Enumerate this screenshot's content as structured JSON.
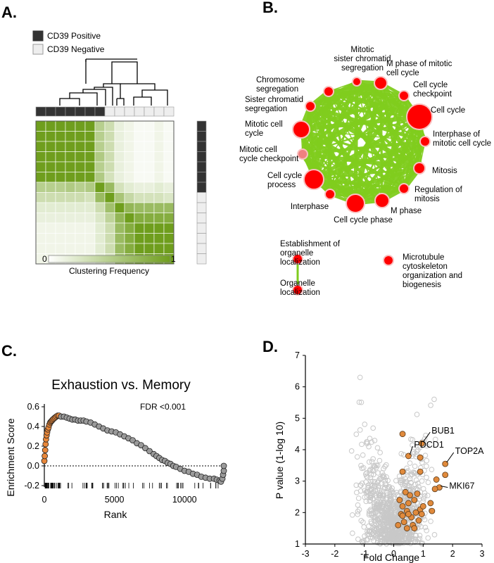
{
  "panel_labels": [
    "A.",
    "B.",
    "C.",
    "D."
  ],
  "colors": {
    "green": "#6f9e1d",
    "net_edge": "#7fcc1e",
    "net_node": "#ff0000",
    "net_node_light": "#f08080",
    "gsea_orange": "#e8873a",
    "gsea_grey": "#9a9a9a",
    "volcano_grey": "#c8c8c8",
    "volcano_orange": "#e08a3c"
  },
  "panel_a": {
    "legend": [
      {
        "label": "CD39 Positive",
        "color": "#333333"
      },
      {
        "label": "CD39 Negative",
        "color": "#eeeeee"
      }
    ],
    "colorbar": {
      "min_label": "0",
      "max_label": "1",
      "title": "Clustering Frequency"
    },
    "n_samples": 14,
    "n_positive": 7,
    "matrix": [
      [
        1,
        1,
        1,
        1,
        1,
        1,
        0.5,
        0.35,
        0.15,
        0.1,
        0.05,
        0.05,
        0.1,
        0.05
      ],
      [
        1,
        1,
        1,
        1,
        1,
        1,
        0.5,
        0.35,
        0.15,
        0.1,
        0.05,
        0.05,
        0.1,
        0.05
      ],
      [
        1,
        1,
        1,
        1,
        1,
        1,
        0.5,
        0.35,
        0.15,
        0.1,
        0.05,
        0.05,
        0.1,
        0.05
      ],
      [
        1,
        1,
        1,
        1,
        1,
        1,
        0.55,
        0.35,
        0.15,
        0.1,
        0.05,
        0.05,
        0.1,
        0.05
      ],
      [
        1,
        1,
        1,
        1,
        1,
        1,
        0.5,
        0.35,
        0.15,
        0.1,
        0.05,
        0.05,
        0.1,
        0.05
      ],
      [
        1,
        1,
        1,
        1,
        1,
        1,
        0.55,
        0.3,
        0.15,
        0.1,
        0.05,
        0.05,
        0.1,
        0.05
      ],
      [
        0.5,
        0.5,
        0.5,
        0.55,
        0.5,
        0.55,
        1,
        0.7,
        0.3,
        0.2,
        0.15,
        0.15,
        0.2,
        0.15
      ],
      [
        0.35,
        0.35,
        0.35,
        0.35,
        0.35,
        0.3,
        0.7,
        1,
        0.6,
        0.4,
        0.3,
        0.3,
        0.3,
        0.25
      ],
      [
        0.2,
        0.2,
        0.2,
        0.2,
        0.2,
        0.2,
        0.35,
        0.65,
        1,
        0.75,
        0.7,
        0.7,
        0.7,
        0.7
      ],
      [
        0.15,
        0.15,
        0.15,
        0.15,
        0.15,
        0.15,
        0.25,
        0.45,
        0.75,
        1,
        0.85,
        0.85,
        0.85,
        0.85
      ],
      [
        0.1,
        0.1,
        0.1,
        0.1,
        0.1,
        0.1,
        0.2,
        0.35,
        0.7,
        0.85,
        1,
        1,
        1,
        1
      ],
      [
        0.1,
        0.1,
        0.1,
        0.1,
        0.1,
        0.1,
        0.2,
        0.35,
        0.7,
        0.85,
        1,
        1,
        1,
        1
      ],
      [
        0.1,
        0.1,
        0.1,
        0.1,
        0.1,
        0.1,
        0.2,
        0.35,
        0.7,
        0.85,
        1,
        1,
        1,
        1
      ],
      [
        0.1,
        0.1,
        0.1,
        0.1,
        0.1,
        0.1,
        0.2,
        0.3,
        0.7,
        0.85,
        1,
        1,
        1,
        1
      ]
    ]
  },
  "panel_b": {
    "nodes": [
      {
        "label": "Mitotic\nsister chromatid\nsegregation",
        "size": 1
      },
      {
        "label": "M phase of mitotic\ncell cycle",
        "size": 2
      },
      {
        "label": "Cell cycle\ncheckpoint",
        "size": 1
      },
      {
        "label": "Cell cycle",
        "size": 4
      },
      {
        "label": "Interphase of\nmitotic cell cycle",
        "size": 1
      },
      {
        "label": "Mitosis",
        "size": 2
      },
      {
        "label": "Regulation of\nmitosis",
        "size": 1
      },
      {
        "label": "M phase",
        "size": 2
      },
      {
        "label": "Cell cycle phase",
        "size": 3
      },
      {
        "label": "Interphase",
        "size": 1
      },
      {
        "label": "Cell cycle\nprocess",
        "size": 3
      },
      {
        "label": "Mitotic cell\ncycle checkpoint",
        "size": 1,
        "light": true
      },
      {
        "label": "Mitotic cell\ncycle",
        "size": 3
      },
      {
        "label": "Sister chromatid\nsegregation",
        "size": 1
      },
      {
        "label": "Chromosome\nsegregation",
        "size": 1
      }
    ],
    "pair_nodes": [
      {
        "label": "Establishment of\norganelle\nlocalization"
      },
      {
        "label": "Organelle\nlocalization"
      }
    ],
    "single_node": {
      "label": "Microtubule\ncytoskeleton\norganization and\nbiogenesis"
    }
  },
  "chart_data": [
    {
      "type": "line",
      "title": "Exhaustion vs. Memory",
      "annotation": "FDR <0.001",
      "xlabel": "Rank",
      "ylabel": "Enrichment Score",
      "xlim": [
        0,
        13000
      ],
      "ylim": [
        -0.2,
        0.6
      ],
      "xticks": [
        "0",
        "5000",
        "10000"
      ],
      "xtick_values": [
        0,
        5000,
        10000
      ],
      "yticks": [
        "-0.2",
        "0.0",
        "0.2",
        "0.4",
        "0.6"
      ],
      "ytick_values": [
        -0.2,
        0,
        0.2,
        0.4,
        0.6
      ],
      "reference_line": 0,
      "series": [
        {
          "points": [
            [
              0,
              0.05
            ],
            [
              30,
              0.1
            ],
            [
              60,
              0.16
            ],
            [
              90,
              0.22
            ],
            [
              120,
              0.27
            ],
            [
              160,
              0.31
            ],
            [
              200,
              0.34
            ],
            [
              250,
              0.37
            ],
            [
              300,
              0.39
            ],
            [
              360,
              0.42
            ],
            [
              420,
              0.44
            ],
            [
              480,
              0.45
            ],
            [
              540,
              0.46
            ],
            [
              600,
              0.47
            ],
            [
              680,
              0.48
            ],
            [
              760,
              0.49
            ],
            [
              850,
              0.5
            ],
            [
              950,
              0.51
            ],
            [
              1050,
              0.51
            ]
          ],
          "color": "orange"
        },
        {
          "points": [
            [
              1200,
              0.5
            ],
            [
              1400,
              0.5
            ],
            [
              1600,
              0.49
            ],
            [
              1800,
              0.48
            ],
            [
              2000,
              0.47
            ],
            [
              2200,
              0.47
            ],
            [
              2400,
              0.46
            ],
            [
              2600,
              0.46
            ],
            [
              2800,
              0.46
            ],
            [
              3000,
              0.45
            ],
            [
              3300,
              0.44
            ],
            [
              3600,
              0.42
            ],
            [
              3900,
              0.4
            ],
            [
              4200,
              0.38
            ],
            [
              4500,
              0.36
            ],
            [
              4800,
              0.35
            ],
            [
              5100,
              0.34
            ],
            [
              5400,
              0.32
            ],
            [
              5700,
              0.3
            ],
            [
              6000,
              0.28
            ],
            [
              6300,
              0.26
            ],
            [
              6600,
              0.23
            ],
            [
              6900,
              0.21
            ],
            [
              7200,
              0.18
            ],
            [
              7500,
              0.15
            ],
            [
              7800,
              0.12
            ],
            [
              8000,
              0.1
            ],
            [
              8200,
              0.08
            ],
            [
              8400,
              0.06
            ],
            [
              8600,
              0.05
            ],
            [
              8800,
              0.03
            ],
            [
              9000,
              0.02
            ],
            [
              9200,
              0.0
            ],
            [
              9400,
              -0.01
            ],
            [
              9700,
              -0.03
            ],
            [
              10000,
              -0.05
            ],
            [
              10300,
              -0.06
            ],
            [
              10600,
              -0.08
            ],
            [
              10900,
              -0.09
            ],
            [
              11200,
              -0.11
            ],
            [
              11500,
              -0.12
            ],
            [
              11800,
              -0.13
            ],
            [
              12100,
              -0.13
            ],
            [
              12300,
              -0.14
            ],
            [
              12500,
              -0.15
            ],
            [
              12600,
              -0.16
            ],
            [
              12700,
              -0.13
            ],
            [
              12750,
              -0.09
            ],
            [
              12800,
              -0.05
            ],
            [
              12800,
              0.0
            ]
          ],
          "color": "grey"
        }
      ]
    },
    {
      "type": "scatter",
      "xlabel": "Fold Change",
      "ylabel": "P value (1-log 10)",
      "xlim": [
        -3,
        3
      ],
      "ylim": [
        1,
        7
      ],
      "xticks": [
        "-3",
        "-2",
        "-1",
        "0",
        "1",
        "2",
        "3"
      ],
      "xtick_values": [
        -3,
        -2,
        -1,
        0,
        1,
        2,
        3
      ],
      "yticks": [
        "1",
        "2",
        "3",
        "4",
        "5",
        "6",
        "7"
      ],
      "ytick_values": [
        1,
        2,
        3,
        4,
        5,
        6,
        7
      ],
      "highlighted": [
        [
          0.3,
          4.5
        ],
        [
          0.95,
          4.2
        ],
        [
          0.5,
          3.8
        ],
        [
          0.9,
          3.75
        ],
        [
          1.75,
          3.55
        ],
        [
          0.3,
          3.3
        ],
        [
          0.9,
          3.3
        ],
        [
          1.45,
          3.05
        ],
        [
          1.75,
          3.2
        ],
        [
          1.55,
          2.8
        ],
        [
          1.4,
          2.75
        ],
        [
          0.3,
          2.2
        ],
        [
          0.5,
          2.3
        ],
        [
          0.7,
          2.4
        ],
        [
          0.8,
          2.6
        ],
        [
          0.45,
          2.05
        ],
        [
          0.25,
          1.95
        ],
        [
          0.6,
          1.85
        ],
        [
          0.35,
          1.7
        ],
        [
          0.15,
          1.6
        ],
        [
          0.9,
          2.1
        ],
        [
          0.55,
          2.55
        ],
        [
          0.4,
          2.65
        ],
        [
          0.75,
          2.0
        ],
        [
          1.0,
          2.2
        ],
        [
          0.2,
          2.4
        ],
        [
          0.65,
          1.6
        ],
        [
          0.45,
          1.5
        ],
        [
          0.3,
          1.9
        ],
        [
          0.85,
          1.75
        ],
        [
          0.5,
          1.95
        ],
        [
          1.25,
          2.3
        ],
        [
          1.3,
          2.05
        ],
        [
          0.95,
          1.95
        ],
        [
          0.7,
          1.5
        ]
      ],
      "labeled_genes": [
        {
          "name": "BUB1",
          "x": 0.95,
          "y": 4.2
        },
        {
          "name": "PDCD1",
          "x": 0.5,
          "y": 3.8
        },
        {
          "name": "TOP2A",
          "x": 1.75,
          "y": 3.55
        },
        {
          "name": "MKI67",
          "x": 1.55,
          "y": 2.8
        }
      ]
    }
  ]
}
